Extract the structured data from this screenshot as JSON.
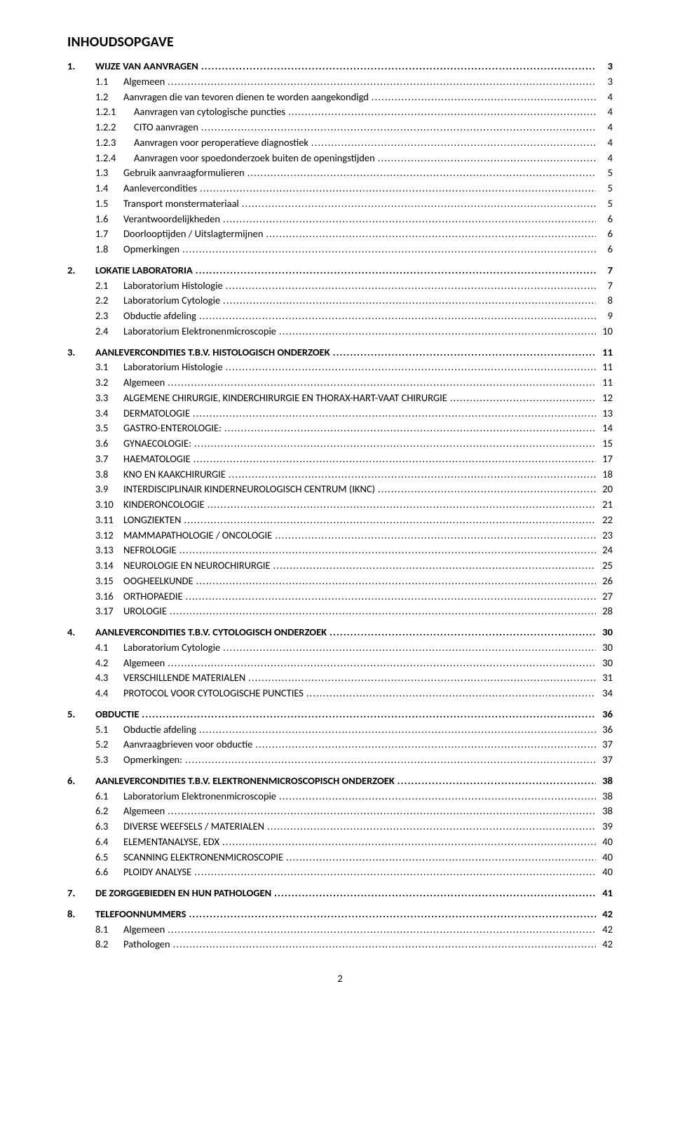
{
  "doc_title": "INHOUDSOPGAVE",
  "page_number": "2",
  "toc": [
    {
      "level": 1,
      "num": "1.",
      "title": "WIJZE VAN AANVRAGEN",
      "page": "3",
      "bold": true
    },
    {
      "level": 2,
      "num": "1.1",
      "title": "Algemeen",
      "page": "3",
      "smallcaps": true
    },
    {
      "level": 2,
      "num": "1.2",
      "title": "Aanvragen die van tevoren dienen te worden aangekondigd",
      "page": "4",
      "smallcaps": true
    },
    {
      "level": 3,
      "num": "1.2.1",
      "title": "Aanvragen van cytologische puncties",
      "page": "4"
    },
    {
      "level": 3,
      "num": "1.2.2",
      "title": "CITO aanvragen",
      "page": "4"
    },
    {
      "level": 3,
      "num": "1.2.3",
      "title": "Aanvragen voor peroperatieve diagnostiek",
      "page": "4"
    },
    {
      "level": 3,
      "num": "1.2.4",
      "title": "Aanvragen voor spoedonderzoek buiten de openingstijden",
      "page": "4"
    },
    {
      "level": 2,
      "num": "1.3",
      "title": "Gebruik aanvraagformulieren",
      "page": "5",
      "smallcaps": true
    },
    {
      "level": 2,
      "num": "1.4",
      "title": "Aanlevercondities",
      "page": "5",
      "smallcaps": true
    },
    {
      "level": 2,
      "num": "1.5",
      "title": "Transport monstermateriaal",
      "page": "5",
      "smallcaps": true
    },
    {
      "level": 2,
      "num": "1.6",
      "title": "Verantwoordelijkheden",
      "page": "6",
      "smallcaps": true
    },
    {
      "level": 2,
      "num": "1.7",
      "title": "Doorlooptijden / Uitslagtermijnen",
      "page": "6",
      "smallcaps": true
    },
    {
      "level": 2,
      "num": "1.8",
      "title": "Opmerkingen",
      "page": "6",
      "smallcaps": true
    },
    {
      "level": 1,
      "num": "2.",
      "title": "LOKATIE LABORATORIA",
      "page": "7",
      "bold": true
    },
    {
      "level": 2,
      "num": "2.1",
      "title": "Laboratorium Histologie",
      "page": "7",
      "smallcaps": true
    },
    {
      "level": 2,
      "num": "2.2",
      "title": "Laboratorium Cytologie",
      "page": "8",
      "smallcaps": true
    },
    {
      "level": 2,
      "num": "2.3",
      "title": "Obductie afdeling",
      "page": "9",
      "smallcaps": true
    },
    {
      "level": 2,
      "num": "2.4",
      "title": "Laboratorium Elektronenmicroscopie",
      "page": "10",
      "smallcaps": true
    },
    {
      "level": 1,
      "num": "3.",
      "title": "AANLEVERCONDITIES T.B.V. HISTOLOGISCH ONDERZOEK",
      "page": "11",
      "bold": true
    },
    {
      "level": 2,
      "num": "3.1",
      "title": "Laboratorium Histologie",
      "page": "11",
      "smallcaps": true
    },
    {
      "level": 2,
      "num": "3.2",
      "title": "Algemeen",
      "page": "11",
      "smallcaps": true
    },
    {
      "level": 2,
      "num": "3.3",
      "title": "ALGEMENE CHIRURGIE,  KINDERCHIRURGIE  EN THORAX-HART-VAAT CHIRURGIE",
      "page": "12"
    },
    {
      "level": 2,
      "num": "3.4",
      "title": "DERMATOLOGIE",
      "page": "13"
    },
    {
      "level": 2,
      "num": "3.5",
      "title": "GASTRO-ENTEROLOGIE:",
      "page": "14"
    },
    {
      "level": 2,
      "num": "3.6",
      "title": "GYNAECOLOGIE:",
      "page": "15"
    },
    {
      "level": 2,
      "num": "3.7",
      "title": "HAEMATOLOGIE",
      "page": "17"
    },
    {
      "level": 2,
      "num": "3.8",
      "title": "KNO EN KAAKCHIRURGIE",
      "page": "18"
    },
    {
      "level": 2,
      "num": "3.9",
      "title": "INTERDISCIPLINAIR KINDERNEUROLOGISCH CENTRUM (IKNC)",
      "page": "20"
    },
    {
      "level": 2,
      "num": "3.10",
      "title": "KINDERONCOLOGIE",
      "page": "21"
    },
    {
      "level": 2,
      "num": "3.11",
      "title": "LONGZIEKTEN",
      "page": "22"
    },
    {
      "level": 2,
      "num": "3.12",
      "title": "MAMMAPATHOLOGIE / ONCOLOGIE",
      "page": "23"
    },
    {
      "level": 2,
      "num": "3.13",
      "title": "NEFROLOGIE",
      "page": "24"
    },
    {
      "level": 2,
      "num": "3.14",
      "title": "NEUROLOGIE  EN  NEUROCHIRURGIE",
      "page": "25"
    },
    {
      "level": 2,
      "num": "3.15",
      "title": "OOGHEELKUNDE",
      "page": "26"
    },
    {
      "level": 2,
      "num": "3.16",
      "title": "ORTHOPAEDIE",
      "page": "27"
    },
    {
      "level": 2,
      "num": "3.17",
      "title": "UROLOGIE",
      "page": "28"
    },
    {
      "level": 1,
      "num": "4.",
      "title": "AANLEVERCONDITIES T.B.V. CYTOLOGISCH ONDERZOEK",
      "page": "30",
      "bold": true
    },
    {
      "level": 2,
      "num": "4.1",
      "title": "Laboratorium Cytologie",
      "page": "30",
      "smallcaps": true
    },
    {
      "level": 2,
      "num": "4.2",
      "title": "Algemeen",
      "page": "30",
      "smallcaps": true
    },
    {
      "level": 2,
      "num": "4.3",
      "title": "VERSCHILLENDE MATERIALEN",
      "page": "31"
    },
    {
      "level": 2,
      "num": "4.4",
      "title": "PROTOCOL VOOR CYTOLOGISCHE PUNCTIES",
      "page": "34"
    },
    {
      "level": 1,
      "num": "5.",
      "title": "OBDUCTIE",
      "page": "36",
      "bold": true
    },
    {
      "level": 2,
      "num": "5.1",
      "title": "Obductie afdeling",
      "page": "36",
      "smallcaps": true
    },
    {
      "level": 2,
      "num": "5.2",
      "title": "Aanvraagbrieven voor obductie",
      "page": "37",
      "smallcaps": true
    },
    {
      "level": 2,
      "num": "5.3",
      "title": "Opmerkingen:",
      "page": "37",
      "smallcaps": true
    },
    {
      "level": 1,
      "num": "6.",
      "title": "AANLEVERCONDITIES T.B.V. ELEKTRONENMICROSCOPISCH ONDERZOEK",
      "page": "38",
      "bold": true
    },
    {
      "level": 2,
      "num": "6.1",
      "title": "Laboratorium Elektronenmicroscopie",
      "page": "38",
      "smallcaps": true
    },
    {
      "level": 2,
      "num": "6.2",
      "title": "Algemeen",
      "page": "38",
      "smallcaps": true
    },
    {
      "level": 2,
      "num": "6.3",
      "title": "DIVERSE WEEFSELS / MATERIALEN",
      "page": "39"
    },
    {
      "level": 2,
      "num": "6.4",
      "title": "ELEMENTANALYSE, EDX",
      "page": "40"
    },
    {
      "level": 2,
      "num": "6.5",
      "title": "SCANNING ELEKTRONENMICROSCOPIE",
      "page": "40"
    },
    {
      "level": 2,
      "num": "6.6",
      "title": "PLOIDY ANALYSE",
      "page": "40"
    },
    {
      "level": 1,
      "num": "7.",
      "title": "DE ZORGGEBIEDEN EN HUN PATHOLOGEN",
      "page": "41",
      "bold": true
    },
    {
      "level": 1,
      "num": "8.",
      "title": "TELEFOONNUMMERS",
      "page": "42",
      "bold": true
    },
    {
      "level": 2,
      "num": "8.1",
      "title": "Algemeen",
      "page": "42",
      "smallcaps": true
    },
    {
      "level": 2,
      "num": "8.2",
      "title": "Pathologen",
      "page": "42",
      "smallcaps": true
    }
  ]
}
